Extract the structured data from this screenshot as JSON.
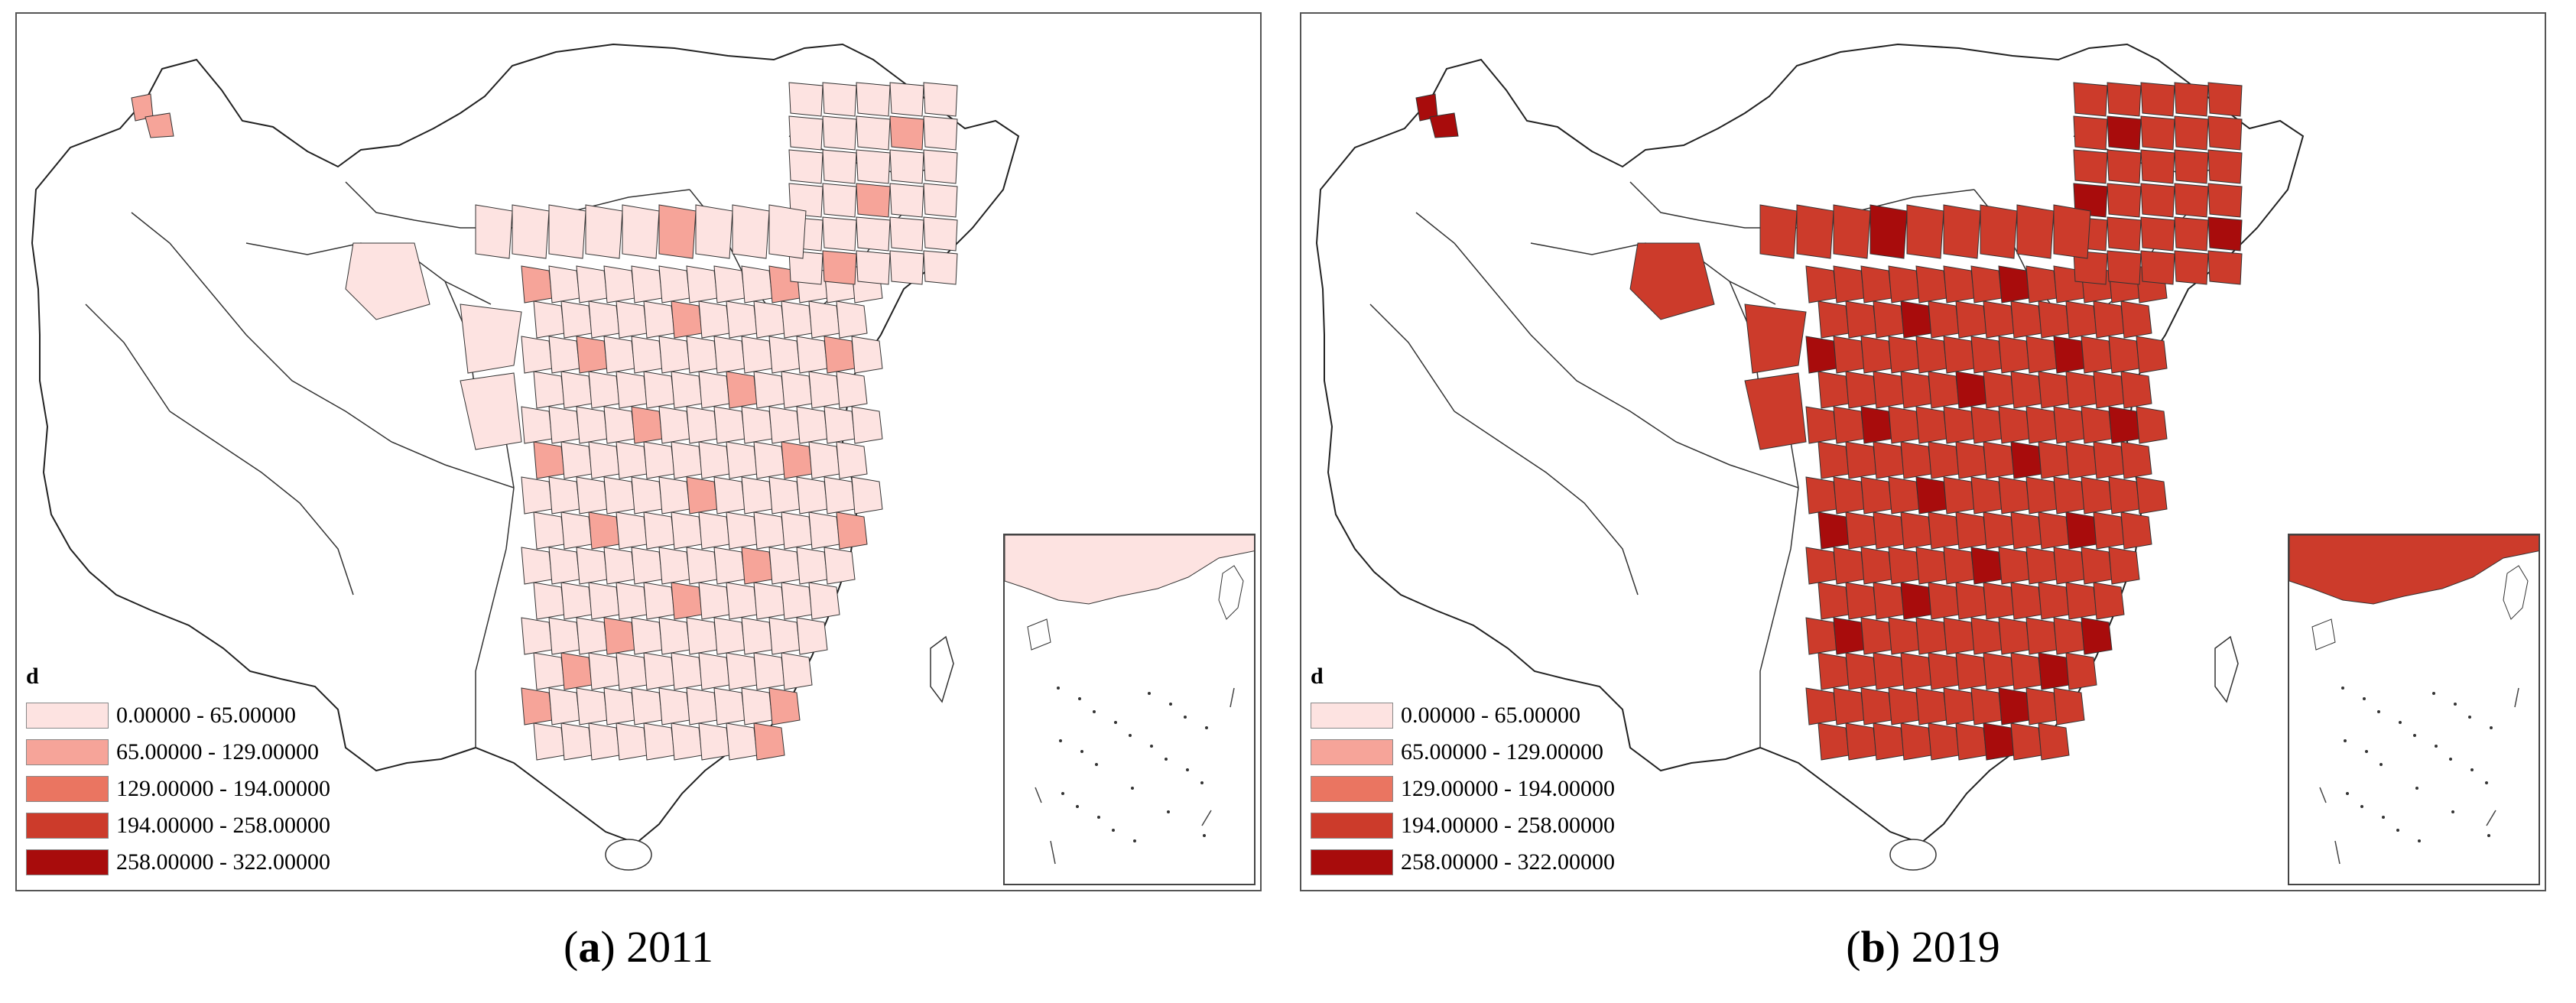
{
  "legend": {
    "title": "d",
    "classes": [
      {
        "label": "0.00000 - 65.00000",
        "color": "#fde3e1"
      },
      {
        "label": "65.00000 - 129.00000",
        "color": "#f6a499"
      },
      {
        "label": "129.00000 - 194.00000",
        "color": "#ea7561"
      },
      {
        "label": "194.00000 - 258.00000",
        "color": "#cc3b2b"
      },
      {
        "label": "258.00000 - 322.00000",
        "color": "#a80c0c"
      }
    ]
  },
  "panels": [
    {
      "letter": "a",
      "year": "2011",
      "dominant_class": 0,
      "secondary_class": 1
    },
    {
      "letter": "b",
      "year": "2019",
      "dominant_class": 3,
      "secondary_class": 4
    }
  ]
}
